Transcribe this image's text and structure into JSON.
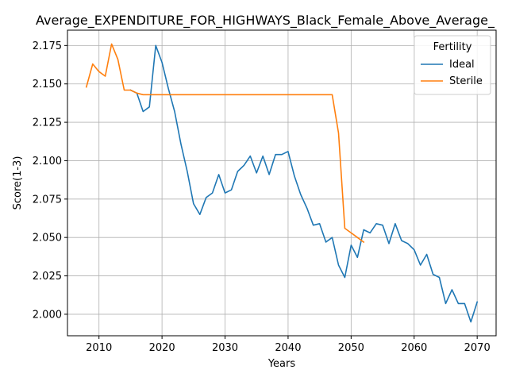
{
  "chart_data": {
    "type": "line",
    "title": "Average_EXPENDITURE_FOR_HIGHWAYS_Black_Female_Above_Average_",
    "xlabel": "Years",
    "ylabel": "Score(1-3)",
    "xlim": [
      2005,
      2073
    ],
    "ylim": [
      1.986,
      2.185
    ],
    "xticks": [
      2010,
      2020,
      2030,
      2040,
      2050,
      2060,
      2070
    ],
    "yticks": [
      2.0,
      2.025,
      2.05,
      2.075,
      2.1,
      2.125,
      2.15,
      2.175
    ],
    "grid": true,
    "legend": {
      "title": "Fertility",
      "position": "top-right"
    },
    "series": [
      {
        "name": "Ideal",
        "color": "#1f77b4",
        "x": [
          2015,
          2016,
          2017,
          2018,
          2019,
          2020,
          2021,
          2022,
          2023,
          2024,
          2025,
          2026,
          2027,
          2028,
          2029,
          2030,
          2031,
          2032,
          2033,
          2034,
          2035,
          2036,
          2037,
          2038,
          2039,
          2040,
          2041,
          2042,
          2043,
          2044,
          2045,
          2046,
          2047,
          2048,
          2049,
          2050,
          2051,
          2052,
          2053,
          2054,
          2055,
          2056,
          2057,
          2058,
          2059,
          2060,
          2061,
          2062,
          2063,
          2064,
          2065,
          2066,
          2067,
          2068,
          2069,
          2070
        ],
        "y": [
          2.146,
          2.144,
          2.132,
          2.135,
          2.175,
          2.164,
          2.147,
          2.132,
          2.111,
          2.093,
          2.072,
          2.065,
          2.076,
          2.079,
          2.091,
          2.079,
          2.081,
          2.093,
          2.097,
          2.103,
          2.092,
          2.103,
          2.091,
          2.104,
          2.104,
          2.106,
          2.09,
          2.078,
          2.069,
          2.058,
          2.059,
          2.047,
          2.05,
          2.032,
          2.024,
          2.045,
          2.037,
          2.055,
          2.053,
          2.059,
          2.058,
          2.046,
          2.059,
          2.048,
          2.046,
          2.042,
          2.032,
          2.039,
          2.026,
          2.024,
          2.007,
          2.016,
          2.007,
          2.007,
          1.995,
          2.008
        ]
      },
      {
        "name": "Sterile",
        "color": "#ff7f0e",
        "x": [
          2008,
          2009,
          2010,
          2011,
          2012,
          2013,
          2014,
          2015,
          2016,
          2017,
          2018,
          2019,
          2020,
          2021,
          2022,
          2023,
          2024,
          2025,
          2026,
          2027,
          2028,
          2029,
          2030,
          2031,
          2032,
          2033,
          2034,
          2035,
          2036,
          2037,
          2038,
          2039,
          2040,
          2041,
          2042,
          2043,
          2044,
          2045,
          2046,
          2047,
          2048,
          2049,
          2050,
          2051,
          2052
        ],
        "y": [
          2.148,
          2.163,
          2.158,
          2.155,
          2.176,
          2.166,
          2.146,
          2.146,
          2.144,
          2.143,
          2.143,
          2.143,
          2.143,
          2.143,
          2.143,
          2.143,
          2.143,
          2.143,
          2.143,
          2.143,
          2.143,
          2.143,
          2.143,
          2.143,
          2.143,
          2.143,
          2.143,
          2.143,
          2.143,
          2.143,
          2.143,
          2.143,
          2.143,
          2.143,
          2.143,
          2.143,
          2.143,
          2.143,
          2.143,
          2.143,
          2.118,
          2.056,
          2.053,
          2.05,
          2.047
        ]
      }
    ]
  }
}
